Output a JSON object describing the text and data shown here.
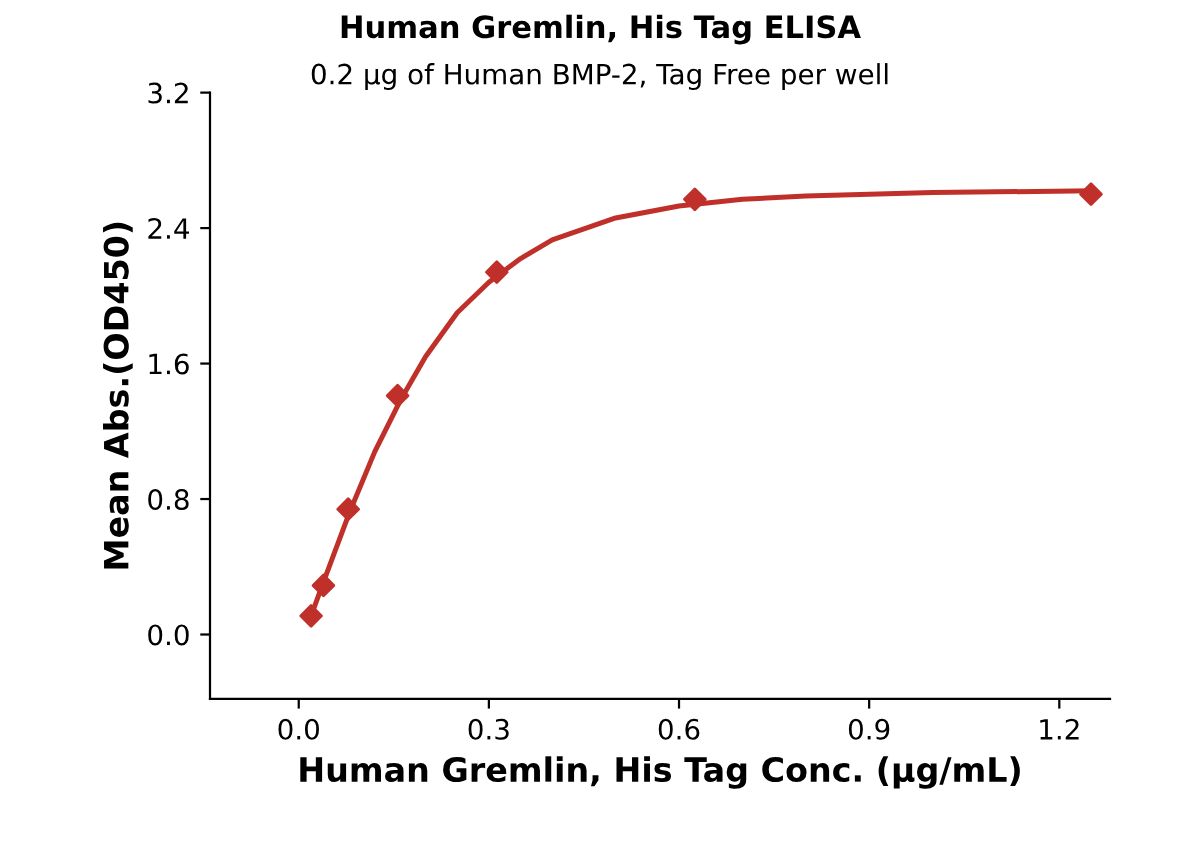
{
  "chart_data": {
    "type": "scatter",
    "title": "Human Gremlin, His Tag ELISA",
    "subtitle": "0.2 μg of Human BMP-2, Tag Free per well",
    "xlabel": "Human Gremlin, His Tag Conc. (μg/mL)",
    "ylabel": "Mean Abs.(OD450)",
    "xlim": [
      -0.14,
      1.28
    ],
    "xticks": [
      {
        "value": 0,
        "label": "0.0"
      },
      0.3,
      0.6,
      0.9,
      1.2
    ],
    "ylim": [
      -0.38,
      3.2
    ],
    "yticks": [
      {
        "value": 0,
        "label": "0.0"
      },
      0.8,
      1.6,
      2.4,
      3.2
    ],
    "grid": false,
    "legend": false,
    "series": [
      {
        "type": "scatter",
        "color": "#c0302a",
        "marker": "diamond",
        "x": [
          0.0195,
          0.039,
          0.078,
          0.156,
          0.3125,
          0.625,
          1.25
        ],
        "values": [
          0.11,
          0.29,
          0.74,
          1.41,
          2.14,
          2.57,
          2.6
        ]
      },
      {
        "type": "line",
        "color": "#c0302a",
        "marker": "none",
        "line_style": "solid",
        "x": [
          0.0195,
          0.04,
          0.08,
          0.12,
          0.16,
          0.2,
          0.25,
          0.3,
          0.35,
          0.4,
          0.5,
          0.6,
          0.7,
          0.8,
          1.0,
          1.25
        ],
        "values": [
          0.11,
          0.32,
          0.72,
          1.08,
          1.38,
          1.64,
          1.9,
          2.08,
          2.22,
          2.33,
          2.46,
          2.53,
          2.57,
          2.59,
          2.61,
          2.62
        ]
      }
    ]
  }
}
